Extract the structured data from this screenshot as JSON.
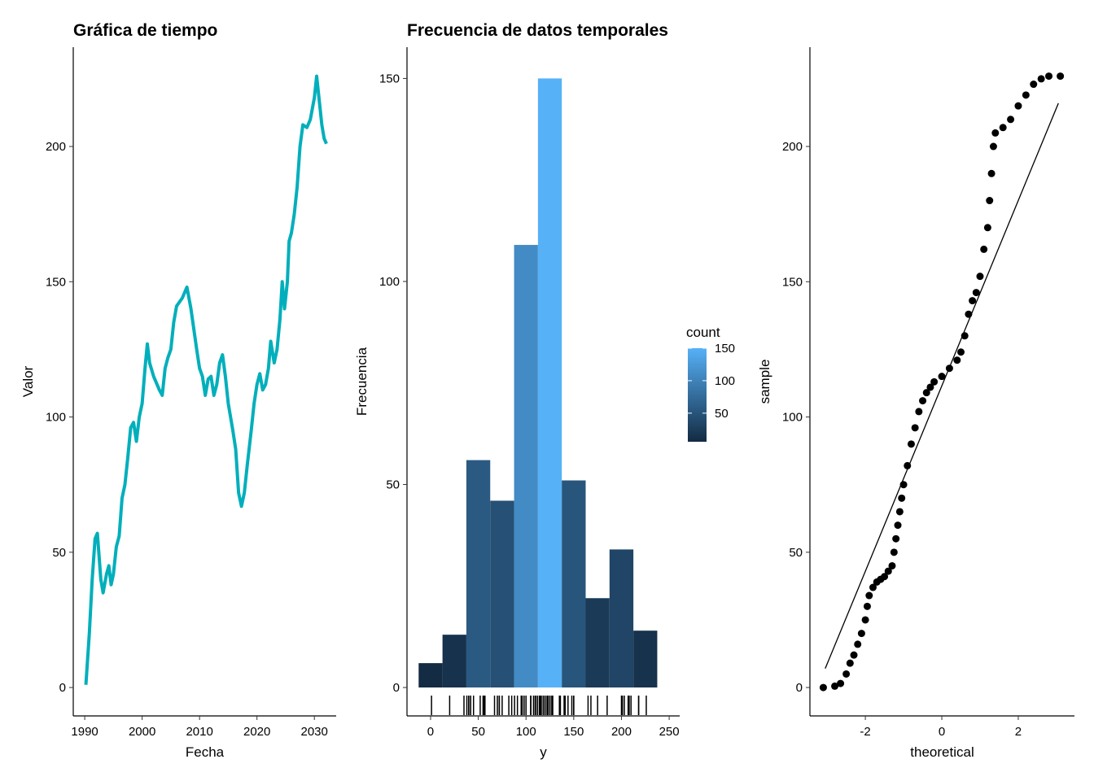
{
  "chart_data": [
    {
      "type": "line",
      "title": "Gráfica de tiempo",
      "x_label": "Fecha",
      "y_label": "Valor",
      "color": "#00AFBB",
      "xlim": [
        1988,
        2033.8
      ],
      "ylim": [
        -10.5,
        236.7
      ],
      "xticks": [
        1990,
        2000,
        2010,
        2020,
        2030
      ],
      "yticks": [
        0,
        50,
        100,
        150,
        200
      ],
      "x": [
        1990.2,
        1990.8,
        1991.3,
        1991.8,
        1992.2,
        1992.8,
        1993.2,
        1993.8,
        1994.2,
        1994.6,
        1995,
        1995.5,
        1996,
        1996.5,
        1997,
        1997.5,
        1998,
        1998.5,
        1999,
        1999.5,
        2000,
        2000.5,
        2000.9,
        2001.3,
        2002,
        2003,
        2003.5,
        2004,
        2004.5,
        2005,
        2005.5,
        2006,
        2007,
        2007.8,
        2008.5,
        2009.5,
        2010,
        2010.5,
        2011,
        2011.5,
        2012,
        2012.5,
        2013,
        2013.5,
        2014,
        2014.5,
        2015,
        2015.8,
        2016.3,
        2016.8,
        2017.3,
        2017.8,
        2018.3,
        2019,
        2019.5,
        2020,
        2020.5,
        2021,
        2021.5,
        2022,
        2022.4,
        2023,
        2023.5,
        2024,
        2024.4,
        2024.8,
        2025.3,
        2025.6,
        2026,
        2026.5,
        2027,
        2027.5,
        2028,
        2028.7,
        2029.3,
        2030,
        2030.4,
        2030.8,
        2031.3,
        2031.7,
        2032.1
      ],
      "y": [
        1,
        20,
        40,
        55,
        57,
        40,
        35,
        42,
        45,
        38,
        42,
        52,
        56,
        70,
        75,
        85,
        96,
        98,
        91,
        100,
        105,
        118,
        127,
        120,
        115,
        110,
        108,
        118,
        122,
        125,
        135,
        141,
        144,
        148,
        140,
        125,
        118,
        115,
        108,
        114,
        115,
        108,
        112,
        120,
        123,
        115,
        105,
        95,
        88,
        72,
        67,
        72,
        82,
        95,
        105,
        112,
        116,
        110,
        112,
        118,
        128,
        120,
        125,
        136,
        150,
        140,
        150,
        165,
        168,
        175,
        185,
        200,
        208,
        207,
        210,
        218,
        226,
        218,
        208,
        203,
        201
      ]
    },
    {
      "type": "histogram",
      "title": "Frecuencia de datos temporales",
      "x_label": "y",
      "y_label": "Frecuencia",
      "xlim": [
        -24.7,
        261
      ],
      "ylim": [
        -7,
        157.7
      ],
      "xticks": [
        0,
        50,
        100,
        150,
        200,
        250
      ],
      "yticks": [
        0,
        50,
        100,
        150
      ],
      "bins": [
        -12.5,
        12.5,
        37.5,
        62.5,
        87.5,
        112.5,
        137.5,
        162.5,
        187.5,
        212.5,
        237.5
      ],
      "counts": [
        6,
        13,
        56,
        46,
        109,
        150,
        51,
        22,
        34,
        14
      ],
      "rug_color": "#000000",
      "legend": {
        "title": "count",
        "ticks": [
          50,
          100,
          150
        ],
        "low": "#132B43",
        "high": "#56B1F7"
      }
    },
    {
      "type": "scatter",
      "x_label": "theoretical",
      "y_label": "sample",
      "color": "#000000",
      "xlim": [
        -3.45,
        3.47
      ],
      "ylim": [
        -10.5,
        236.7
      ],
      "xticks": [
        -2,
        0,
        2
      ],
      "yticks": [
        0,
        50,
        100,
        150,
        200
      ],
      "x": [
        -3.1,
        -2.8,
        -2.65,
        -2.5,
        -2.4,
        -2.3,
        -2.2,
        -2.1,
        -2,
        -1.95,
        -1.9,
        -1.8,
        -1.7,
        -1.6,
        -1.5,
        -1.4,
        -1.3,
        -1.25,
        -1.2,
        -1.15,
        -1.1,
        -1.05,
        -1.0,
        -0.9,
        -0.8,
        -0.7,
        -0.6,
        -0.5,
        -0.4,
        -0.3,
        -0.2,
        0,
        0.2,
        0.4,
        0.5,
        0.6,
        0.7,
        0.8,
        0.9,
        1.0,
        1.1,
        1.2,
        1.25,
        1.3,
        1.35,
        1.4,
        1.6,
        1.8,
        2.0,
        2.2,
        2.4,
        2.6,
        2.8,
        3.1
      ],
      "y": [
        0,
        0.5,
        1.5,
        5,
        9,
        12,
        16,
        20,
        25,
        30,
        34,
        37,
        39,
        40,
        41,
        43,
        45,
        50,
        55,
        60,
        65,
        70,
        75,
        82,
        90,
        96,
        102,
        106,
        109,
        111,
        113,
        115,
        118,
        121,
        124,
        130,
        138,
        143,
        146,
        152,
        162,
        170,
        180,
        190,
        200,
        205,
        207,
        210,
        215,
        219,
        223,
        225,
        226,
        226
      ],
      "line": {
        "x": [
          -3.05,
          3.05
        ],
        "y": [
          7,
          216
        ]
      }
    }
  ]
}
